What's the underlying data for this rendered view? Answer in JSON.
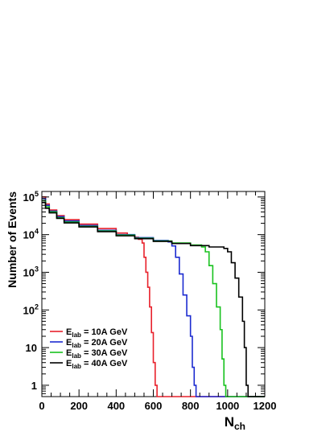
{
  "chart_data": {
    "type": "line",
    "title": "",
    "xlabel": {
      "main": "N",
      "sub": "ch"
    },
    "ylabel": "Number of Events",
    "xlim": [
      0,
      1200
    ],
    "ylim_log": [
      0.5,
      140000
    ],
    "log_y": true,
    "grid": false,
    "legend_position": "bottom-left",
    "x_ticks": [
      0,
      200,
      400,
      600,
      800,
      1000,
      1200
    ],
    "y_ticks": [
      {
        "value": 1,
        "base": "1",
        "exp": ""
      },
      {
        "value": 10,
        "base": "10",
        "exp": ""
      },
      {
        "value": 100,
        "base": "10",
        "exp": "2"
      },
      {
        "value": 1000,
        "base": "10",
        "exp": "3"
      },
      {
        "value": 10000,
        "base": "10",
        "exp": "4"
      },
      {
        "value": 100000,
        "base": "10",
        "exp": "5"
      }
    ],
    "series": [
      {
        "name": "E_lab = 10A GeV",
        "label_main": "E",
        "label_sub": "lab",
        "label_rest": " = 10A GeV",
        "color": "#e8212b",
        "points": [
          [
            0,
            100000
          ],
          [
            20,
            65000
          ],
          [
            40,
            45000
          ],
          [
            80,
            32000
          ],
          [
            120,
            25000
          ],
          [
            200,
            19000
          ],
          [
            300,
            14500
          ],
          [
            400,
            11000
          ],
          [
            460,
            9500
          ],
          [
            500,
            8500
          ],
          [
            520,
            7500
          ],
          [
            540,
            6000
          ],
          [
            550,
            2500
          ],
          [
            560,
            1000
          ],
          [
            570,
            400
          ],
          [
            580,
            120
          ],
          [
            590,
            25
          ],
          [
            600,
            4
          ],
          [
            610,
            1
          ],
          [
            620,
            0.5
          ],
          [
            1200,
            0.5
          ]
        ]
      },
      {
        "name": "E_lab = 20A GeV",
        "label_main": "E",
        "label_sub": "lab",
        "label_rest": " = 20A GeV",
        "color": "#1c2bd0",
        "points": [
          [
            0,
            90000
          ],
          [
            20,
            60000
          ],
          [
            40,
            42000
          ],
          [
            80,
            30000
          ],
          [
            120,
            23000
          ],
          [
            200,
            17500
          ],
          [
            300,
            13000
          ],
          [
            400,
            10000
          ],
          [
            500,
            8300
          ],
          [
            600,
            7000
          ],
          [
            680,
            6400
          ],
          [
            700,
            5000
          ],
          [
            720,
            2500
          ],
          [
            740,
            900
          ],
          [
            760,
            250
          ],
          [
            780,
            70
          ],
          [
            800,
            20
          ],
          [
            810,
            3
          ],
          [
            820,
            1
          ],
          [
            830,
            0.5
          ],
          [
            1200,
            0.5
          ]
        ]
      },
      {
        "name": "E_lab = 30A GeV",
        "label_main": "E",
        "label_sub": "lab",
        "label_rest": " = 30A GeV",
        "color": "#18c21e",
        "points": [
          [
            0,
            80000
          ],
          [
            20,
            55000
          ],
          [
            40,
            40000
          ],
          [
            80,
            28000
          ],
          [
            120,
            21500
          ],
          [
            200,
            16500
          ],
          [
            300,
            12500
          ],
          [
            400,
            9700
          ],
          [
            500,
            8000
          ],
          [
            600,
            6800
          ],
          [
            700,
            6000
          ],
          [
            800,
            5300
          ],
          [
            860,
            4700
          ],
          [
            880,
            3500
          ],
          [
            900,
            1500
          ],
          [
            920,
            500
          ],
          [
            940,
            120
          ],
          [
            960,
            30
          ],
          [
            970,
            5
          ],
          [
            980,
            1
          ],
          [
            990,
            0.5
          ],
          [
            1200,
            0.5
          ]
        ]
      },
      {
        "name": "E_lab = 40A GeV",
        "label_main": "E",
        "label_sub": "lab",
        "label_rest": " = 40A GeV",
        "color": "#000000",
        "points": [
          [
            0,
            72000
          ],
          [
            20,
            50000
          ],
          [
            40,
            38000
          ],
          [
            80,
            27000
          ],
          [
            120,
            20500
          ],
          [
            200,
            16000
          ],
          [
            300,
            12000
          ],
          [
            400,
            9300
          ],
          [
            500,
            7800
          ],
          [
            600,
            6600
          ],
          [
            700,
            5800
          ],
          [
            800,
            5100
          ],
          [
            900,
            4700
          ],
          [
            980,
            4300
          ],
          [
            1000,
            3500
          ],
          [
            1020,
            1800
          ],
          [
            1040,
            700
          ],
          [
            1060,
            220
          ],
          [
            1080,
            50
          ],
          [
            1090,
            10
          ],
          [
            1100,
            1
          ],
          [
            1110,
            0.5
          ],
          [
            1200,
            0.5
          ]
        ]
      }
    ]
  }
}
